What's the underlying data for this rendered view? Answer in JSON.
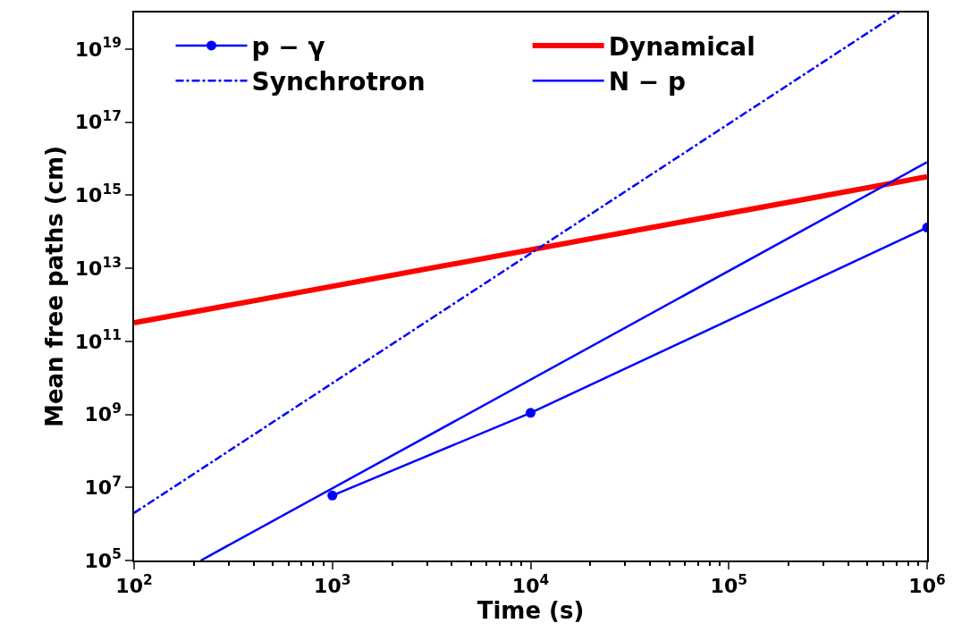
{
  "chart_data": {
    "type": "line",
    "xlabel": "Time (s)",
    "ylabel": "Mean free paths (cm)",
    "log": "xy",
    "xlim": [
      100,
      1000000
    ],
    "xticks": [
      {
        "value": 100,
        "label": "10$^{2}$"
      },
      {
        "value": 1000,
        "label": "10$^{3}$"
      },
      {
        "value": 10000,
        "label": "10$^{4}$"
      },
      {
        "value": 100000,
        "label": "10$^{5}$"
      },
      {
        "value": 1000000,
        "label": "10$^{6}$"
      }
    ],
    "ylim": [
      100000.0,
      1e+20
    ],
    "yticks": [
      {
        "value": 100000.0,
        "label": "10$^{5}$"
      },
      {
        "value": 10000000.0,
        "label": "10$^{7}$"
      },
      {
        "value": 1000000000.0,
        "label": "10$^{9}$"
      },
      {
        "value": 100000000000.0,
        "label": "10$^{11}$"
      },
      {
        "value": 10000000000000.0,
        "label": "10$^{13}$"
      },
      {
        "value": 1000000000000000.0,
        "label": "10$^{15}$"
      },
      {
        "value": 1e+17,
        "label": "10$^{17}$"
      },
      {
        "value": 1e+19,
        "label": "10$^{19}$"
      }
    ],
    "legend": "top",
    "series": [
      {
        "name": "p − γ",
        "color": "#0000ff",
        "x": [
          1000,
          10000,
          1000000
        ],
        "values": [
          6000000.0,
          1100000000.0,
          130000000000000.0
        ],
        "marker": "circle",
        "line_style": "solid"
      },
      {
        "name": "Dynamical",
        "color": "#ff0000",
        "x": [
          100,
          1000000
        ],
        "values": [
          320000000000.0,
          3200000000000000.0
        ],
        "marker": "none",
        "line_style": "solid"
      },
      {
        "name": "Synchrotron",
        "color": "#0000ff",
        "x": [
          100,
          720000
        ],
        "values": [
          2000000.0,
          1e+20
        ],
        "marker": "none",
        "line_style": "dashdot"
      },
      {
        "name": "N − p",
        "color": "#0000ff",
        "x": [
          217,
          1000000
        ],
        "values": [
          100000.0,
          8000000000000000.0
        ],
        "marker": "none",
        "line_style": "solid"
      }
    ]
  }
}
